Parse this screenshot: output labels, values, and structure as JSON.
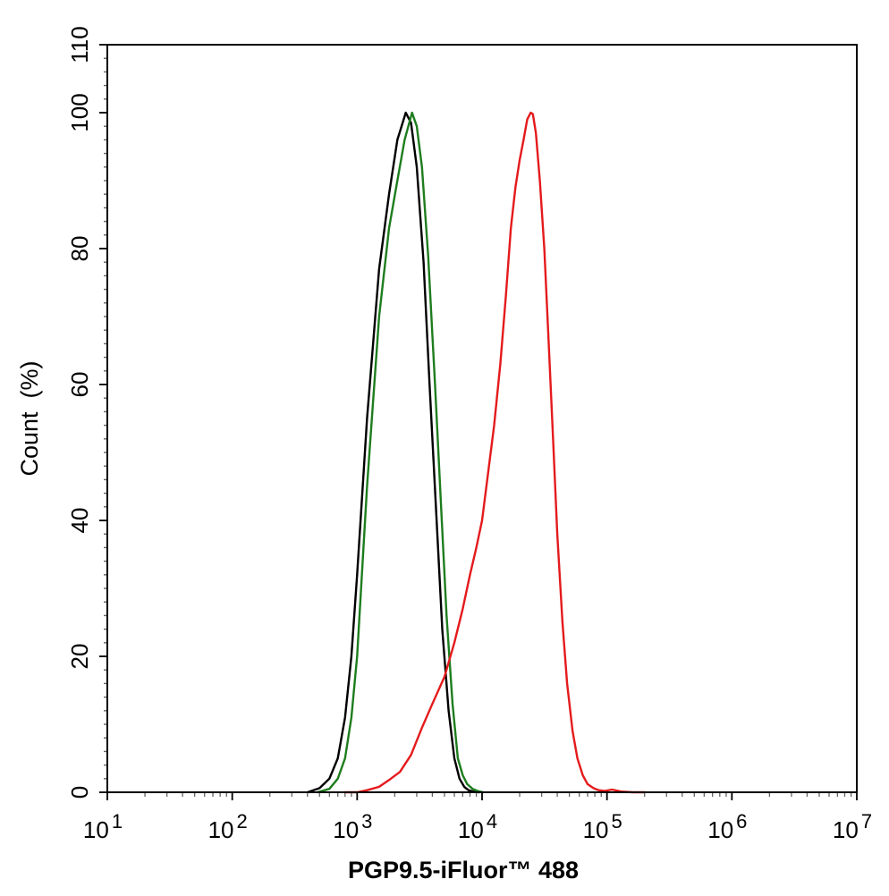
{
  "chart_data": {
    "type": "line",
    "title": "",
    "xlabel": "PGP9.5-iFluor™ 488",
    "ylabel": "Count  (%)",
    "x_scale": "log",
    "xlim": [
      10,
      10000000
    ],
    "ylim": [
      0,
      110
    ],
    "grid": false,
    "legend": "none",
    "x_ticks": [
      {
        "base": "10",
        "exp": "1"
      },
      {
        "base": "10",
        "exp": "2"
      },
      {
        "base": "10",
        "exp": "3"
      },
      {
        "base": "10",
        "exp": "4"
      },
      {
        "base": "10",
        "exp": "5"
      },
      {
        "base": "10",
        "exp": "6"
      },
      {
        "base": "10",
        "exp": "7"
      }
    ],
    "y_ticks": [
      "0",
      "20",
      "40",
      "60",
      "80",
      "100",
      "110"
    ],
    "series": [
      {
        "color": "#000000",
        "x": [
          400,
          500,
          600,
          700,
          800,
          900,
          1000,
          1200,
          1500,
          1800,
          2100,
          2450,
          2700,
          3000,
          3400,
          3800,
          4300,
          4800,
          5400,
          6000,
          6600,
          7200,
          7800,
          8500,
          9500
        ],
        "y": [
          0,
          0.6,
          2,
          5,
          11,
          20,
          32,
          55,
          77,
          88,
          96,
          100,
          98.5,
          92,
          78,
          60,
          41,
          24,
          12,
          5,
          2,
          0.8,
          0.3,
          0.1,
          0
        ]
      },
      {
        "color": "#1e7d1e",
        "x": [
          480,
          600,
          700,
          800,
          900,
          1000,
          1200,
          1500,
          1800,
          2100,
          2400,
          2750,
          3000,
          3300,
          3700,
          4200,
          4700,
          5200,
          5800,
          6400,
          7000,
          7600,
          8400,
          9200,
          10200
        ],
        "y": [
          0,
          0.5,
          2,
          5,
          11,
          20,
          45,
          70,
          83,
          90,
          96,
          100,
          98,
          92,
          79,
          60,
          42,
          26,
          13,
          5,
          2.5,
          1.2,
          0.5,
          0.2,
          0
        ]
      },
      {
        "color": "#e41a1c",
        "x": [
          800,
          1000,
          1200,
          1500,
          1800,
          2200,
          2700,
          3300,
          4000,
          5000,
          6000,
          7000,
          8000,
          9000,
          10000,
          11000,
          12500,
          14000,
          15500,
          17000,
          18500,
          20000,
          21500,
          23000,
          24500,
          25500,
          27000,
          29000,
          31500,
          34000,
          37000,
          40000,
          44000,
          48000,
          53000,
          58000,
          64000,
          70000,
          78000,
          86000,
          95000,
          110000,
          130000,
          160000,
          200000
        ],
        "y": [
          0,
          0,
          0.3,
          0.8,
          1.8,
          3,
          5.5,
          9.5,
          13,
          17,
          22,
          27,
          32,
          36,
          40,
          46,
          54,
          63,
          73,
          83,
          89,
          93,
          96,
          99,
          100,
          99.8,
          97,
          90,
          80,
          67,
          52,
          38,
          25,
          16,
          9,
          5,
          2.5,
          1.2,
          0.6,
          0.3,
          0.2,
          0.4,
          0.1,
          0,
          0
        ]
      }
    ]
  }
}
